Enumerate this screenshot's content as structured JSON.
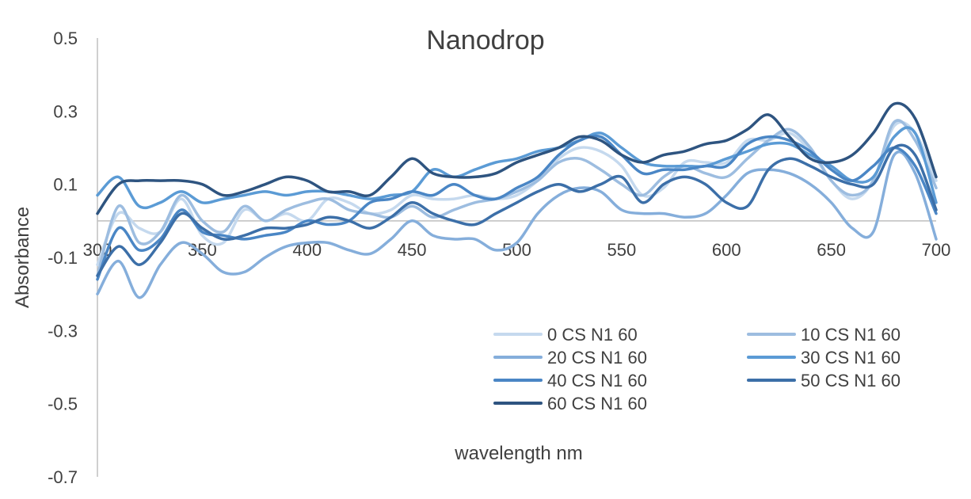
{
  "chart_data": {
    "type": "line",
    "title": "Nanodrop",
    "xlabel": "wavelength nm",
    "ylabel": "Absorbance",
    "xlim": [
      300,
      700
    ],
    "ylim": [
      -0.7,
      0.5
    ],
    "x_ticks": [
      "300",
      "350",
      "400",
      "450",
      "500",
      "550",
      "600",
      "650",
      "700"
    ],
    "y_ticks": [
      "0.5",
      "0.3",
      "0.1",
      "-0.1",
      "-0.3",
      "-0.5",
      "-0.7"
    ],
    "grid": false,
    "legend_position": "bottom-right",
    "x": [
      300,
      310,
      320,
      330,
      340,
      350,
      360,
      370,
      380,
      390,
      400,
      410,
      420,
      430,
      440,
      450,
      460,
      470,
      480,
      490,
      500,
      510,
      520,
      530,
      540,
      550,
      560,
      570,
      580,
      590,
      600,
      610,
      620,
      630,
      640,
      650,
      660,
      670,
      680,
      690,
      700
    ],
    "series": [
      {
        "name": "0 CS N1 60",
        "color": "#c5d9ee",
        "values": [
          -0.12,
          0.02,
          -0.02,
          -0.03,
          0.06,
          -0.04,
          -0.06,
          0.03,
          0.0,
          0.02,
          0.0,
          0.06,
          0.05,
          0.02,
          0.03,
          0.07,
          0.06,
          0.06,
          0.07,
          0.06,
          0.07,
          0.11,
          0.17,
          0.2,
          0.19,
          0.15,
          0.07,
          0.09,
          0.16,
          0.16,
          0.16,
          0.22,
          0.22,
          0.24,
          0.19,
          0.11,
          0.06,
          0.11,
          0.26,
          0.24,
          0.11
        ]
      },
      {
        "name": "10 CS N1 60",
        "color": "#9dbde0",
        "values": [
          -0.15,
          0.04,
          -0.06,
          -0.03,
          0.07,
          0.0,
          -0.03,
          0.04,
          0.0,
          0.03,
          0.05,
          0.06,
          0.03,
          0.02,
          0.01,
          0.04,
          0.01,
          0.03,
          0.05,
          0.06,
          0.08,
          0.11,
          0.16,
          0.17,
          0.14,
          0.1,
          0.07,
          0.12,
          0.15,
          0.13,
          0.12,
          0.17,
          0.22,
          0.25,
          0.2,
          0.11,
          0.07,
          0.11,
          0.27,
          0.22,
          0.09
        ]
      },
      {
        "name": "20 CS N1 60",
        "color": "#85aedb",
        "values": [
          -0.2,
          -0.11,
          -0.21,
          -0.12,
          -0.06,
          -0.09,
          -0.14,
          -0.14,
          -0.1,
          -0.07,
          -0.06,
          -0.06,
          -0.08,
          -0.09,
          -0.05,
          0.0,
          -0.04,
          -0.05,
          -0.05,
          -0.08,
          -0.06,
          0.02,
          0.07,
          0.09,
          0.08,
          0.03,
          0.02,
          0.02,
          0.01,
          0.02,
          0.07,
          0.13,
          0.14,
          0.13,
          0.1,
          0.05,
          -0.02,
          -0.03,
          0.18,
          0.13,
          -0.05
        ]
      },
      {
        "name": "30 CS N1 60",
        "color": "#5b9bd5",
        "values": [
          0.07,
          0.12,
          0.04,
          0.05,
          0.08,
          0.05,
          0.06,
          0.07,
          0.08,
          0.07,
          0.08,
          0.08,
          0.07,
          0.06,
          0.07,
          0.08,
          0.14,
          0.12,
          0.14,
          0.16,
          0.17,
          0.19,
          0.2,
          0.22,
          0.24,
          0.2,
          0.16,
          0.15,
          0.15,
          0.15,
          0.17,
          0.19,
          0.21,
          0.21,
          0.18,
          0.15,
          0.11,
          0.12,
          0.23,
          0.24,
          0.05
        ]
      },
      {
        "name": "40 CS N1 60",
        "color": "#4a86c5",
        "values": [
          -0.16,
          -0.02,
          -0.08,
          -0.05,
          0.03,
          -0.03,
          -0.04,
          -0.05,
          -0.04,
          -0.03,
          0.0,
          -0.01,
          0.0,
          0.05,
          0.06,
          0.08,
          0.07,
          0.1,
          0.07,
          0.06,
          0.09,
          0.12,
          0.18,
          0.22,
          0.23,
          0.18,
          0.13,
          0.14,
          0.14,
          0.15,
          0.15,
          0.21,
          0.23,
          0.22,
          0.19,
          0.14,
          0.11,
          0.15,
          0.2,
          0.15,
          0.02
        ]
      },
      {
        "name": "50 CS N1 60",
        "color": "#3c6fa8",
        "values": [
          -0.15,
          -0.07,
          -0.12,
          -0.06,
          0.02,
          -0.02,
          -0.05,
          -0.04,
          -0.02,
          -0.02,
          -0.01,
          0.01,
          0.0,
          -0.02,
          0.01,
          0.05,
          0.02,
          0.0,
          -0.01,
          0.02,
          0.05,
          0.08,
          0.1,
          0.08,
          0.1,
          0.12,
          0.05,
          0.1,
          0.12,
          0.1,
          0.05,
          0.04,
          0.14,
          0.17,
          0.15,
          0.12,
          0.1,
          0.1,
          0.2,
          0.18,
          0.03
        ]
      },
      {
        "name": "60 CS N1 60",
        "color": "#2e5480",
        "values": [
          0.02,
          0.1,
          0.11,
          0.11,
          0.11,
          0.1,
          0.07,
          0.08,
          0.1,
          0.12,
          0.11,
          0.08,
          0.08,
          0.07,
          0.12,
          0.17,
          0.13,
          0.12,
          0.12,
          0.13,
          0.16,
          0.18,
          0.2,
          0.23,
          0.22,
          0.18,
          0.16,
          0.18,
          0.19,
          0.21,
          0.22,
          0.25,
          0.29,
          0.23,
          0.17,
          0.16,
          0.18,
          0.24,
          0.32,
          0.28,
          0.12
        ]
      }
    ]
  }
}
